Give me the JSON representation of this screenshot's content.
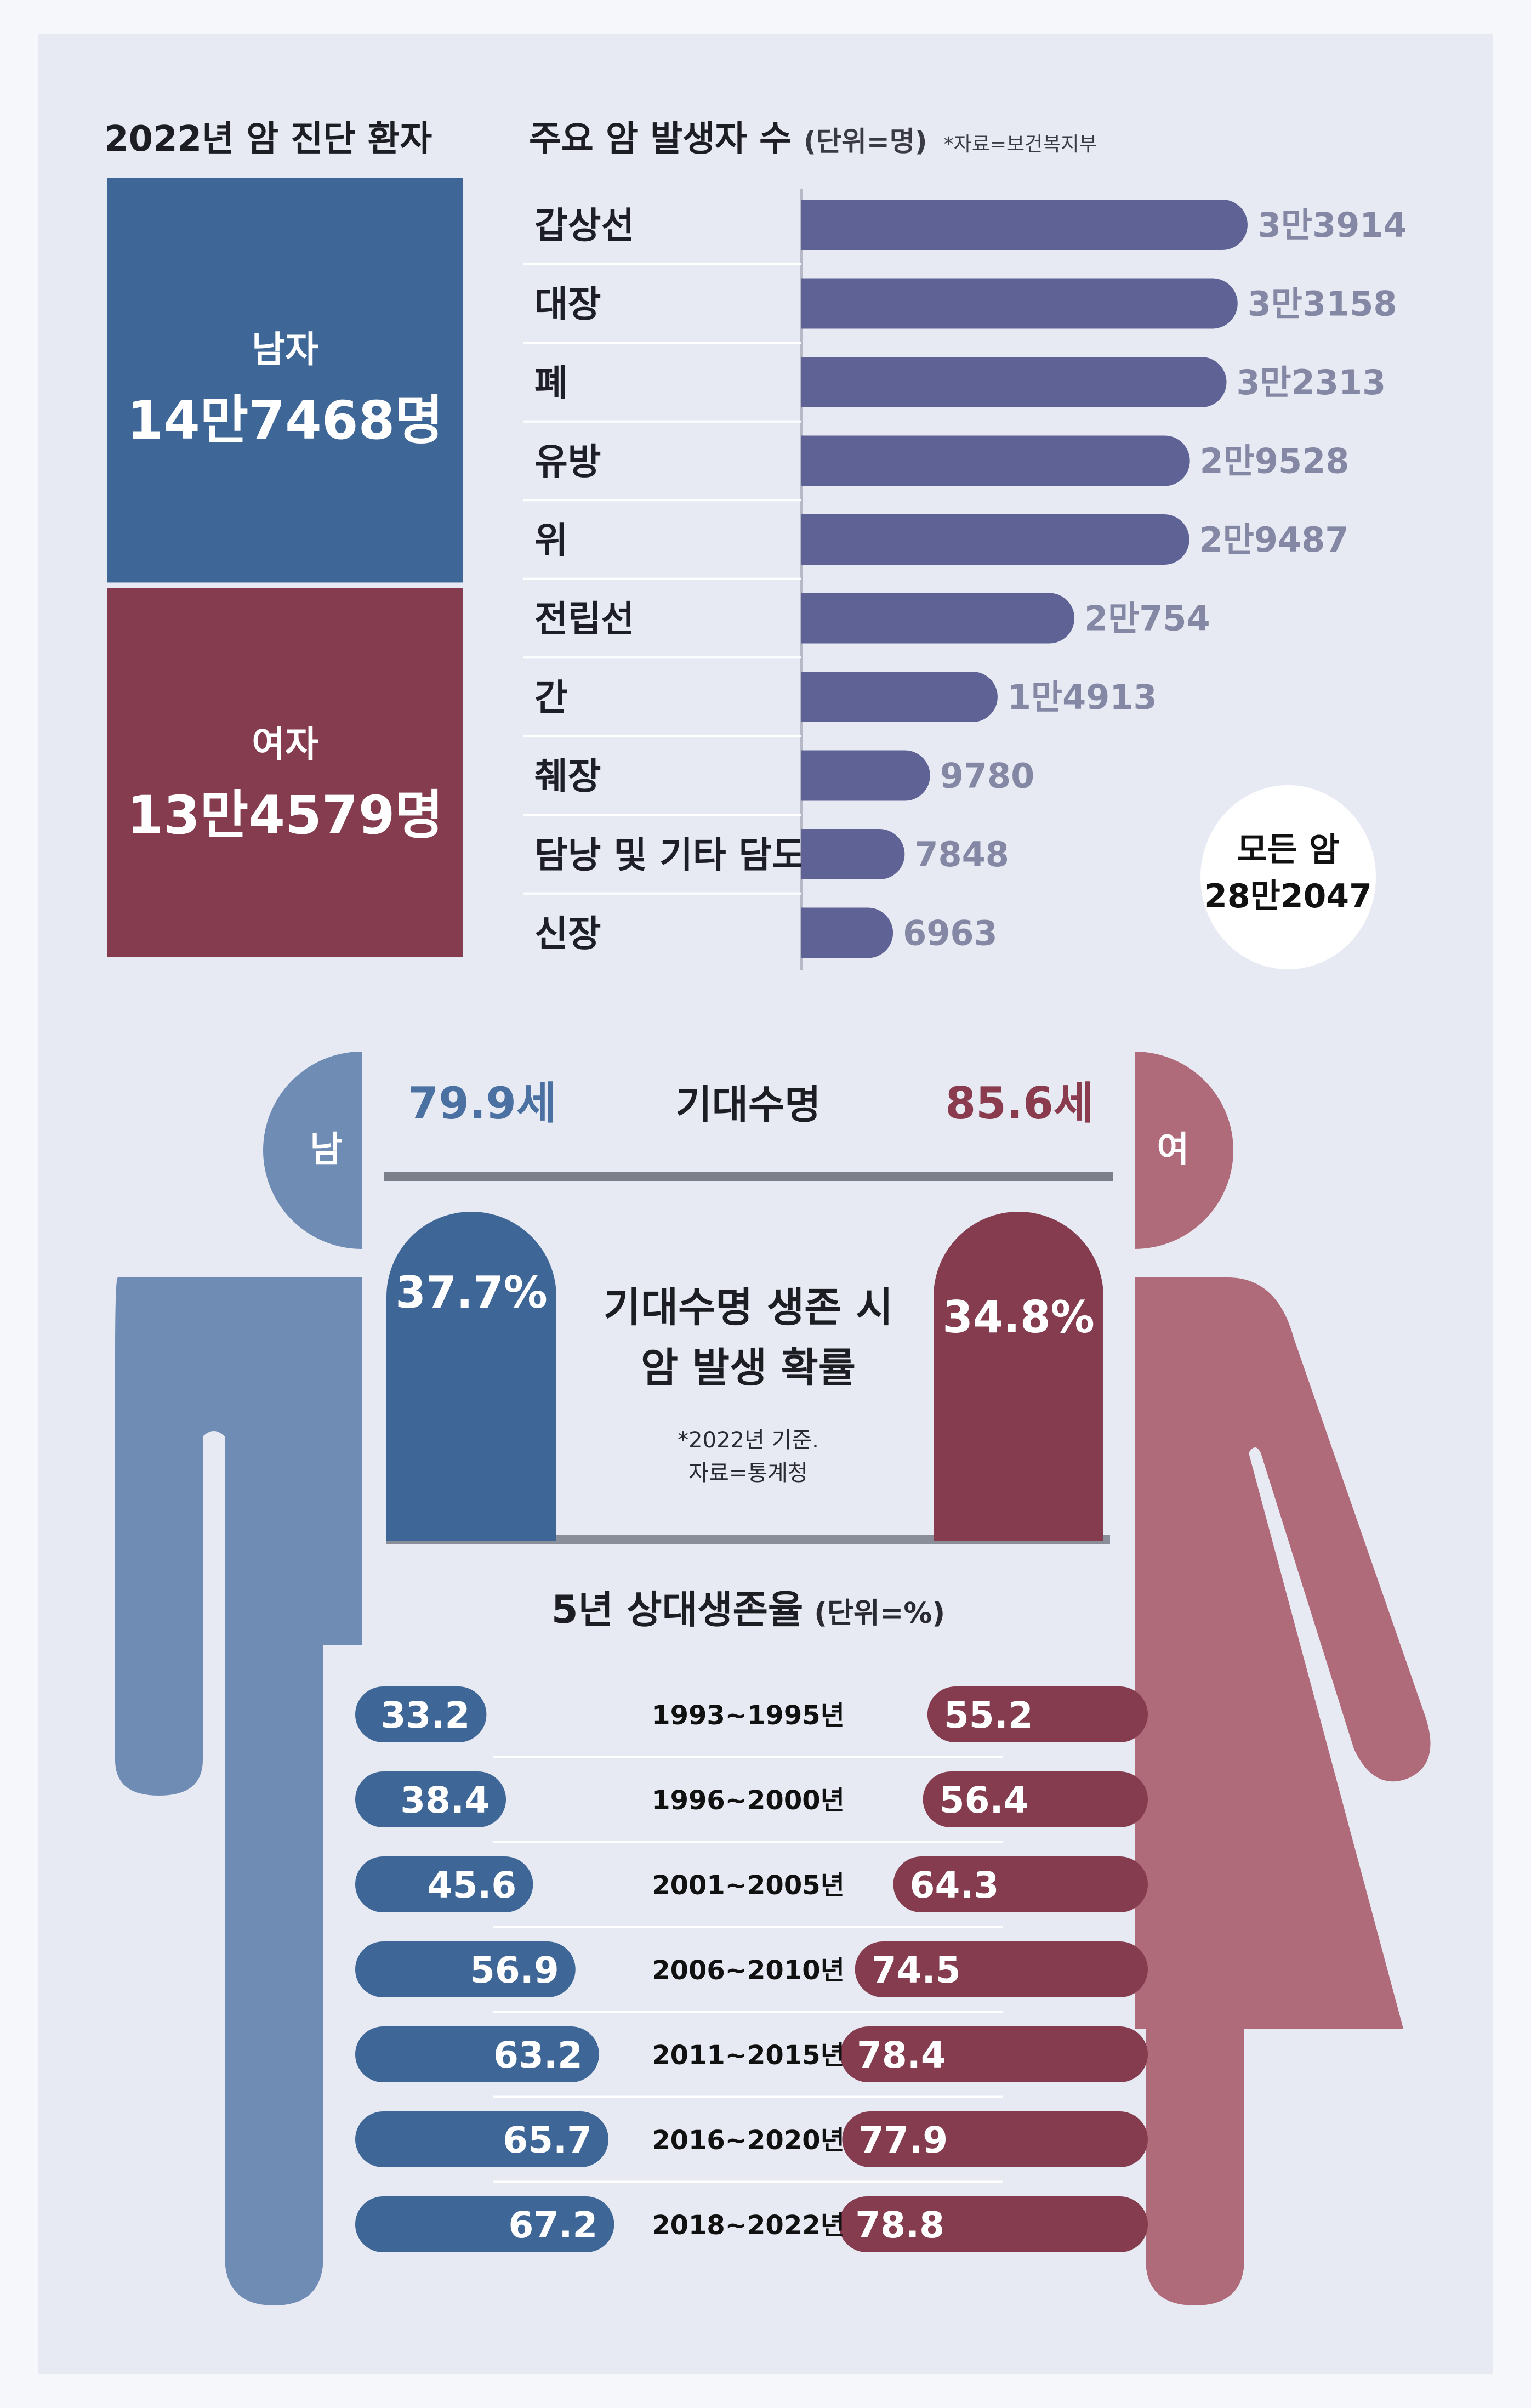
{
  "header": {
    "left_title": "2022년 암 진단 환자",
    "right_title": "주요 암 발생자 수",
    "unit": "(단위=명)",
    "source": "*자료=보건복지부"
  },
  "gender": {
    "male": {
      "label": "남자",
      "value": "14만7468명",
      "count": 147468
    },
    "female": {
      "label": "여자",
      "value": "13만4579명",
      "count": 134579
    }
  },
  "total": {
    "label": "모든 암",
    "value": "28만2047"
  },
  "life": {
    "male_head": "남",
    "female_head": "여",
    "title": "기대수명",
    "male": "79.9세",
    "female": "85.6세"
  },
  "probability": {
    "title_line1": "기대수명 생존 시",
    "title_line2": "암 발생 확률",
    "note_line1": "*2022년 기준.",
    "note_line2": "자료=통계청",
    "male": "37.7%",
    "female": "34.8%"
  },
  "survival": {
    "title": "5년 상대생존율",
    "unit": "(단위=%)"
  },
  "colors": {
    "male": "#3e6697",
    "female": "#843c4e",
    "bar": "#5e6294",
    "male_body": "#6f8cb5",
    "female_body": "#b06b7b"
  },
  "chart_data": [
    {
      "type": "bar",
      "title": "주요 암 발생자 수",
      "orientation": "horizontal",
      "categories": [
        "갑상선",
        "대장",
        "폐",
        "유방",
        "위",
        "전립선",
        "간",
        "췌장",
        "담낭 및 기타 담도",
        "신장"
      ],
      "values": [
        33914,
        33158,
        32313,
        29528,
        29487,
        20754,
        14913,
        9780,
        7848,
        6963
      ],
      "value_labels": [
        "3만3914",
        "3만3158",
        "3만2313",
        "2만9528",
        "2만9487",
        "2만754",
        "1만4913",
        "9780",
        "7848",
        "6963"
      ],
      "xlim": [
        0,
        35000
      ]
    },
    {
      "type": "bar",
      "title": "5년 상대생존율",
      "orientation": "horizontal",
      "categories": [
        "1993~1995년",
        "1996~2000년",
        "2001~2005년",
        "2006~2010년",
        "2011~2015년",
        "2016~2020년",
        "2018~2022년"
      ],
      "series": [
        {
          "name": "남",
          "values": [
            33.2,
            38.4,
            45.6,
            56.9,
            63.2,
            65.7,
            67.2
          ]
        },
        {
          "name": "여",
          "values": [
            55.2,
            56.4,
            64.3,
            74.5,
            78.4,
            77.9,
            78.8
          ]
        }
      ],
      "xlim": [
        0,
        100
      ]
    }
  ]
}
